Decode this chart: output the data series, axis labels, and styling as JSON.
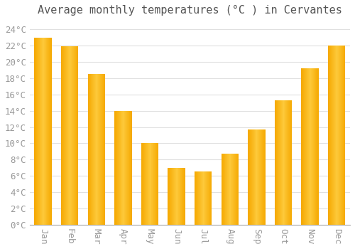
{
  "title": "Average monthly temperatures (°C ) in Cervantes",
  "months": [
    "Jan",
    "Feb",
    "Mar",
    "Apr",
    "May",
    "Jun",
    "Jul",
    "Aug",
    "Sep",
    "Oct",
    "Nov",
    "Dec"
  ],
  "values": [
    23.0,
    21.9,
    18.5,
    14.0,
    10.0,
    7.0,
    6.5,
    8.7,
    11.7,
    15.3,
    19.2,
    22.0
  ],
  "bar_color_light": "#FDC93A",
  "bar_color_dark": "#F5A800",
  "background_color": "#ffffff",
  "plot_bg_color": "#f5f5f5",
  "grid_color": "#e0e0e0",
  "ylim": [
    0,
    25
  ],
  "ytick_max": 24,
  "ytick_step": 2,
  "title_fontsize": 11,
  "tick_fontsize": 9,
  "tick_color": "#999999",
  "title_color": "#555555",
  "font_family": "monospace"
}
